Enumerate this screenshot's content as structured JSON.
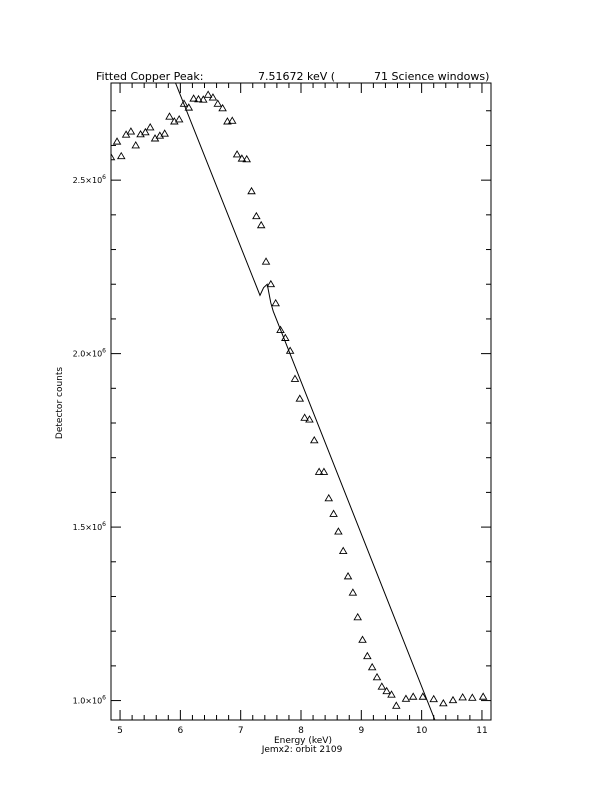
{
  "chart_data": {
    "type": "scatter",
    "title_parts": [
      "Fitted Copper Peak:",
      "7.51672 keV (",
      "71 Science windows)"
    ],
    "xlabel": "Energy (keV)",
    "subtitle": "Jemx2: orbit 2109",
    "ylabel": "Detector counts",
    "xlim": [
      4.85,
      11.15
    ],
    "ylim": [
      944000,
      2780000
    ],
    "x_ticks": [
      5,
      6,
      7,
      8,
      9,
      10,
      11
    ],
    "y_ticks": [
      {
        "value": 1000000,
        "mantissa": "1.0×10",
        "exp": "6"
      },
      {
        "value": 1500000,
        "mantissa": "1.5×10",
        "exp": "6"
      },
      {
        "value": 2000000,
        "mantissa": "2.0×10",
        "exp": "6"
      },
      {
        "value": 2500000,
        "mantissa": "2.5×10",
        "exp": "6"
      }
    ],
    "grid": false,
    "series": [
      {
        "marker": "triangle",
        "points": [
          [
            4.85,
            2566000
          ],
          [
            4.95,
            2611000
          ],
          [
            5.02,
            2569000
          ],
          [
            5.1,
            2631000
          ],
          [
            5.18,
            2640000
          ],
          [
            5.26,
            2600000
          ],
          [
            5.34,
            2632000
          ],
          [
            5.42,
            2638000
          ],
          [
            5.5,
            2652000
          ],
          [
            5.58,
            2620000
          ],
          [
            5.66,
            2628000
          ],
          [
            5.74,
            2634000
          ],
          [
            5.82,
            2683000
          ],
          [
            5.9,
            2669000
          ],
          [
            5.98,
            2675000
          ],
          [
            6.06,
            2720000
          ],
          [
            6.14,
            2709000
          ],
          [
            6.22,
            2735000
          ],
          [
            6.3,
            2733000
          ],
          [
            6.38,
            2732000
          ],
          [
            6.46,
            2746000
          ],
          [
            6.54,
            2738000
          ],
          [
            6.62,
            2720000
          ],
          [
            6.7,
            2707000
          ],
          [
            6.78,
            2669000
          ],
          [
            6.86,
            2671000
          ],
          [
            6.94,
            2574000
          ],
          [
            7.02,
            2562000
          ],
          [
            7.1,
            2560000
          ],
          [
            7.18,
            2468000
          ],
          [
            7.26,
            2396000
          ],
          [
            7.34,
            2370000
          ],
          [
            7.42,
            2265000
          ],
          [
            7.5,
            2200000
          ],
          [
            7.58,
            2145000
          ],
          [
            7.66,
            2068000
          ],
          [
            7.74,
            2045000
          ],
          [
            7.82,
            2008000
          ],
          [
            7.9,
            1927000
          ],
          [
            7.98,
            1870000
          ],
          [
            8.06,
            1815000
          ],
          [
            8.14,
            1810000
          ],
          [
            8.22,
            1750000
          ],
          [
            8.3,
            1659000
          ],
          [
            8.38,
            1659000
          ],
          [
            8.46,
            1583000
          ],
          [
            8.54,
            1538000
          ],
          [
            8.62,
            1487000
          ],
          [
            8.7,
            1431000
          ],
          [
            8.78,
            1358000
          ],
          [
            8.86,
            1311000
          ],
          [
            8.94,
            1240000
          ],
          [
            9.02,
            1175000
          ],
          [
            9.1,
            1128000
          ],
          [
            9.18,
            1096000
          ],
          [
            9.26,
            1067000
          ],
          [
            9.34,
            1040000
          ],
          [
            9.42,
            1027000
          ],
          [
            9.5,
            1017000
          ],
          [
            9.58,
            985000
          ],
          [
            9.74,
            1005000
          ],
          [
            9.86,
            1011000
          ],
          [
            10.02,
            1011000
          ],
          [
            10.2,
            1004000
          ],
          [
            10.36,
            992000
          ],
          [
            10.52,
            1001000
          ],
          [
            10.68,
            1009000
          ],
          [
            10.84,
            1008000
          ],
          [
            11.02,
            1011000
          ]
        ]
      },
      {
        "marker": "line",
        "points": [
          [
            5.92,
            2780000
          ],
          [
            7.32,
            2168000
          ],
          [
            7.38,
            2190000
          ],
          [
            7.44,
            2200000
          ],
          [
            7.5,
            2146000
          ],
          [
            7.54,
            2122000
          ],
          [
            10.22,
            944000
          ]
        ]
      }
    ]
  }
}
